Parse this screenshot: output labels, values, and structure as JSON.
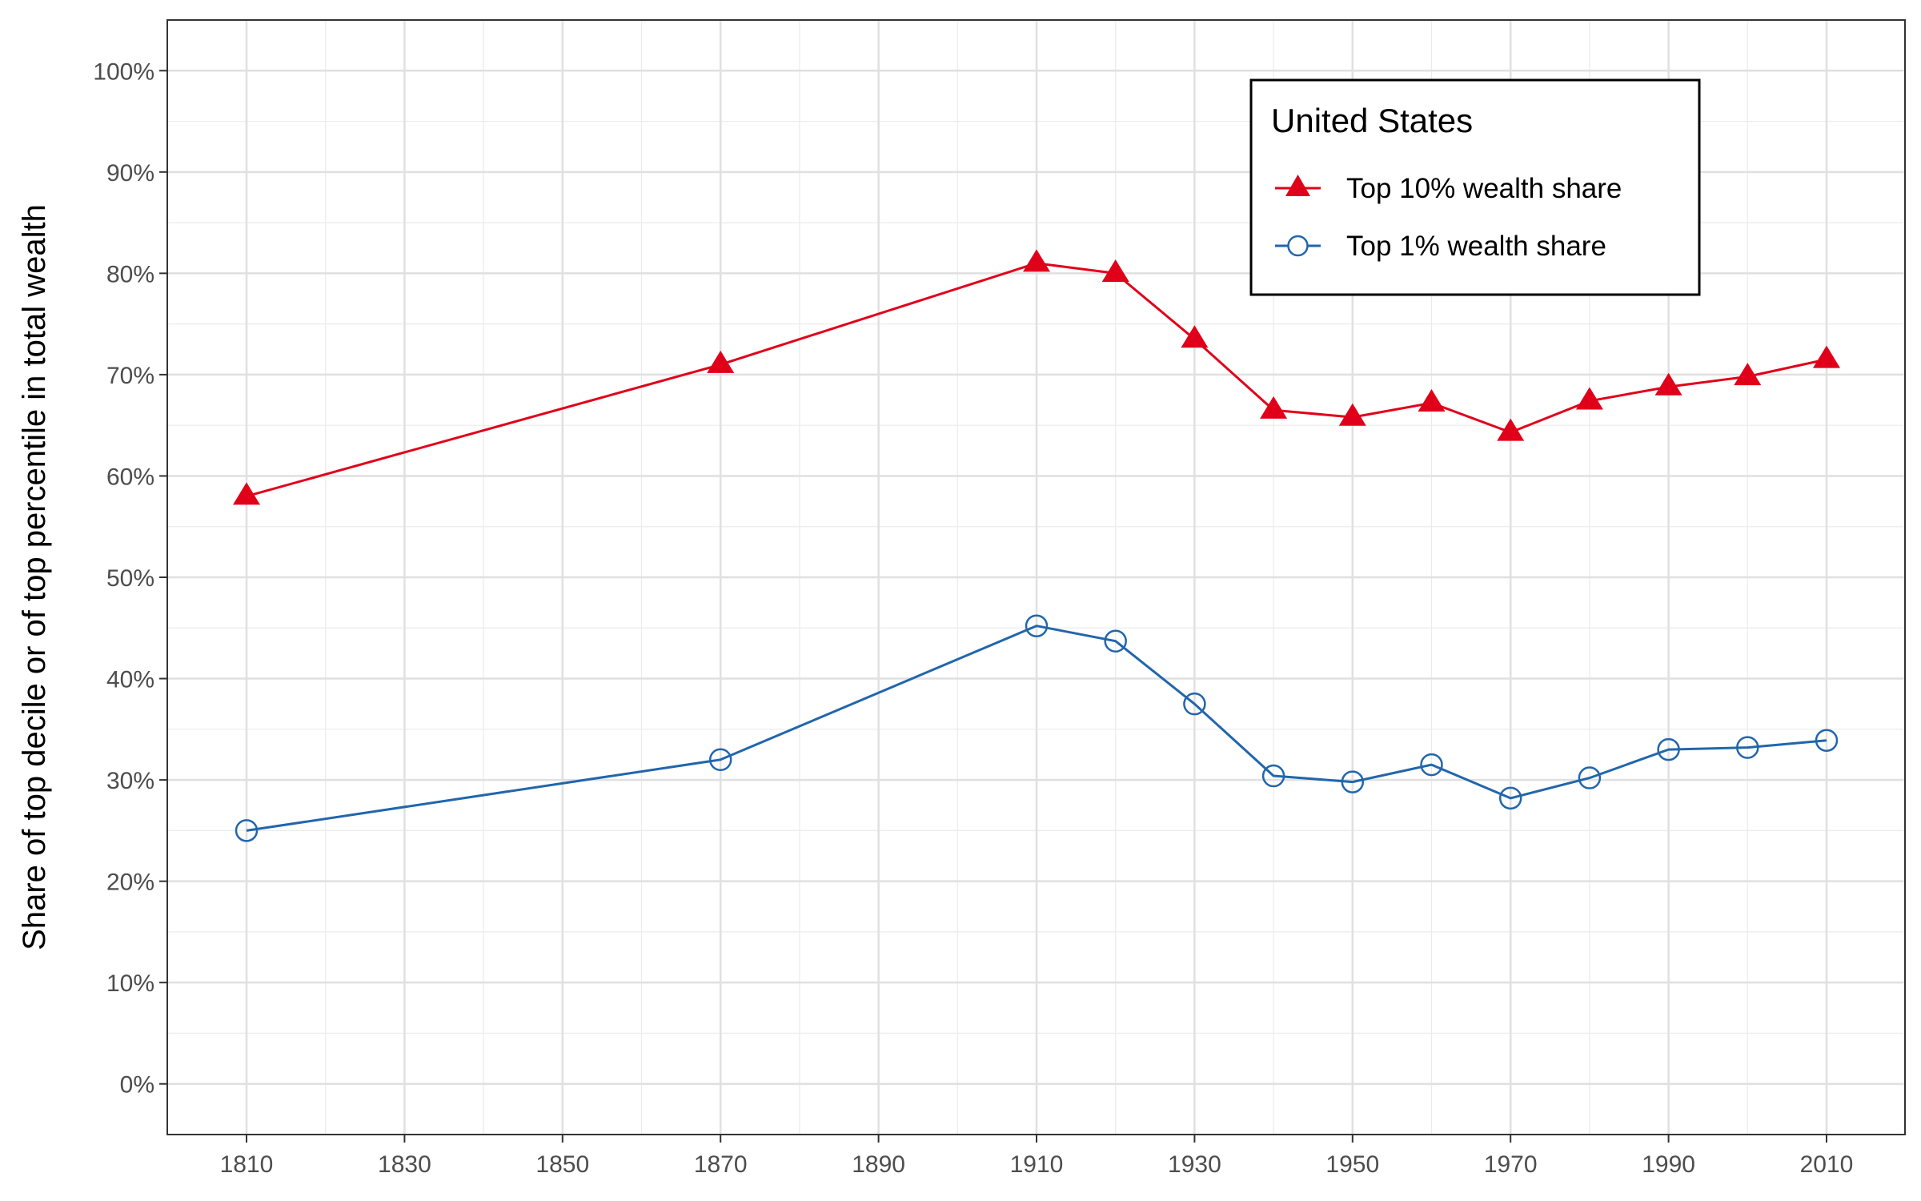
{
  "chart_data": {
    "type": "line",
    "ylabel": "Share of top decile or of top percentile in total wealth",
    "xlabel": "",
    "xlim": [
      1800,
      2020
    ],
    "ylim": [
      -0.05,
      1.05
    ],
    "x_ticks": [
      1810,
      1830,
      1850,
      1870,
      1890,
      1910,
      1930,
      1950,
      1970,
      1990,
      2010
    ],
    "x_tick_labels": [
      "1810",
      "1830",
      "1850",
      "1870",
      "1890",
      "1910",
      "1930",
      "1950",
      "1970",
      "1990",
      "2010"
    ],
    "y_ticks": [
      0,
      0.1,
      0.2,
      0.3,
      0.4,
      0.5,
      0.6,
      0.7,
      0.8,
      0.9,
      1.0
    ],
    "y_tick_labels": [
      "0%",
      "10%",
      "20%",
      "30%",
      "40%",
      "50%",
      "60%",
      "70%",
      "80%",
      "90%",
      "100%"
    ],
    "grid": true,
    "legend": {
      "title": "United States",
      "placement": "top-right"
    },
    "x": [
      1810,
      1870,
      1910,
      1920,
      1930,
      1940,
      1950,
      1960,
      1970,
      1980,
      1990,
      2000,
      2010
    ],
    "series": [
      {
        "name": "Top 10% wealth share",
        "color": "#e1001a",
        "marker": "triangle",
        "values": [
          0.58,
          0.71,
          0.81,
          0.8,
          0.735,
          0.665,
          0.658,
          0.672,
          0.643,
          0.674,
          0.688,
          0.698,
          0.715
        ]
      },
      {
        "name": "Top 1% wealth share",
        "color": "#2166ac",
        "marker": "open-circle",
        "values": [
          0.25,
          0.32,
          0.452,
          0.437,
          0.375,
          0.304,
          0.298,
          0.315,
          0.282,
          0.302,
          0.33,
          0.332,
          0.339
        ]
      }
    ]
  }
}
